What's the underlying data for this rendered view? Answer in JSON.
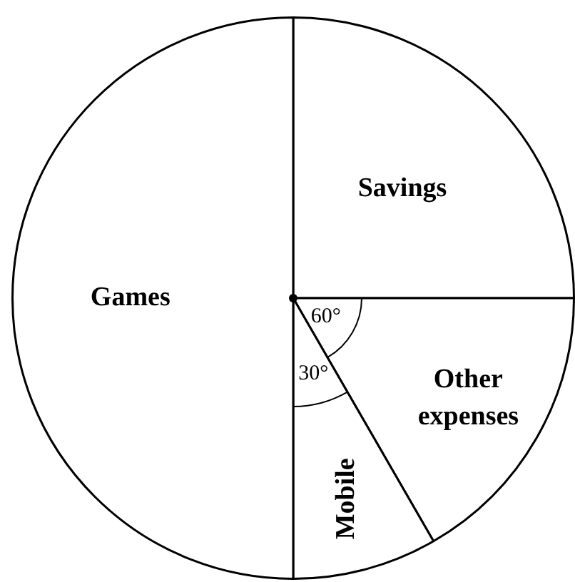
{
  "chart_data": {
    "type": "pie",
    "categories": [
      "Savings",
      "Other expenses",
      "Mobile",
      "Games"
    ],
    "values": [
      25,
      16.67,
      8.33,
      50
    ],
    "colors": [
      "#ffffff",
      "#ffffff",
      "#ffffff",
      "#ffffff"
    ],
    "annotations": [
      "60°",
      "30°"
    ]
  }
}
